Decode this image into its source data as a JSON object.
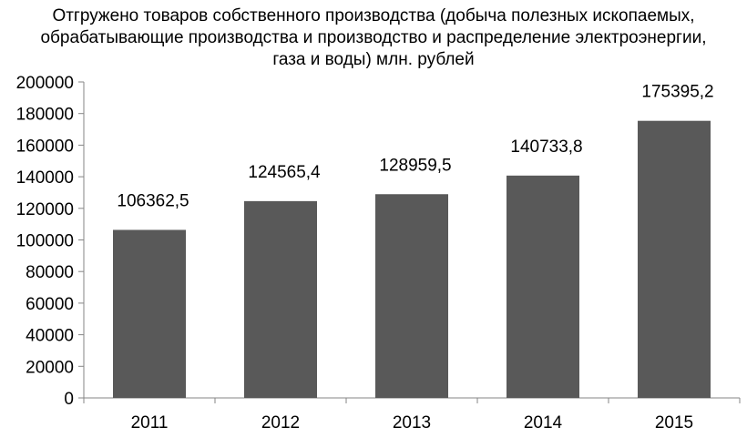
{
  "chart_data": {
    "type": "bar",
    "title_lines": [
      "Отгружено товаров собственного производства (добыча полезных ископаемых,",
      "обрабатывающие производства и производство и распределение электроэнергии,",
      "газа и воды) млн. рублей"
    ],
    "categories": [
      "2011",
      "2012",
      "2013",
      "2014",
      "2015"
    ],
    "values": [
      106362.5,
      124565.4,
      128959.5,
      140733.8,
      175395.2
    ],
    "data_labels": [
      "106362,5",
      "124565,4",
      "128959,5",
      "140733,8",
      "175395,2"
    ],
    "yticks": [
      "0",
      "20000",
      "40000",
      "60000",
      "80000",
      "100000",
      "120000",
      "140000",
      "160000",
      "180000",
      "200000"
    ],
    "ylim": [
      0,
      200000
    ],
    "xlabel": "",
    "ylabel": "",
    "grid": false,
    "legend": "none",
    "bar_color": "#595959",
    "axis_color": "#868686"
  }
}
